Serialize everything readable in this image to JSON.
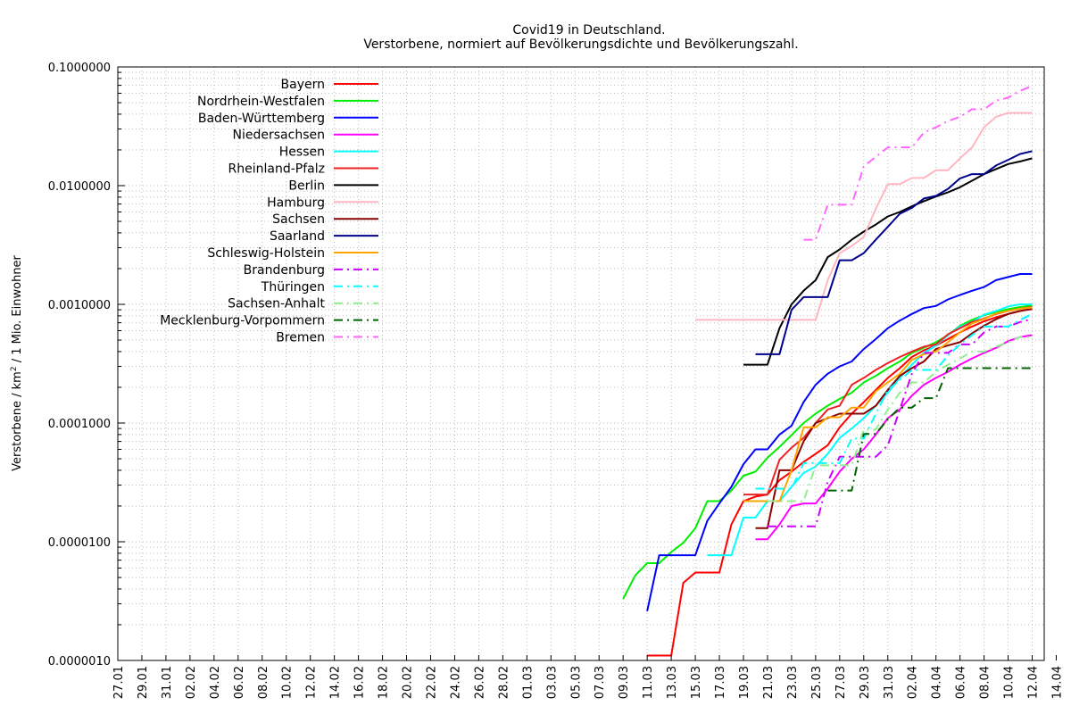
{
  "chart_data": {
    "type": "line",
    "title_line1": "Covid19 in Deutschland.",
    "title_line2": "Verstorbene, normiert auf Bevölkerungsdichte und Bevölkerungszahl.",
    "ylabel_main": "Verstorbene / km",
    "ylabel_sup": "2",
    "ylabel_rest": " / 1 Mio. Einwohner",
    "yscale": "log",
    "ylim": [
      1e-06,
      0.1
    ],
    "yticks": [
      {
        "v": 1e-06,
        "label": "0.0000010"
      },
      {
        "v": 1e-05,
        "label": "0.0000100"
      },
      {
        "v": 0.0001,
        "label": "0.0001000"
      },
      {
        "v": 0.001,
        "label": "0.0010000"
      },
      {
        "v": 0.01,
        "label": "0.0100000"
      },
      {
        "v": 0.1,
        "label": "0.1000000"
      }
    ],
    "xlim": [
      0,
      77
    ],
    "xticks": [
      "27.01",
      "29.01",
      "31.01",
      "02.02",
      "04.02",
      "06.02",
      "08.02",
      "10.02",
      "12.02",
      "14.02",
      "16.02",
      "18.02",
      "20.02",
      "22.02",
      "24.02",
      "26.02",
      "28.02",
      "01.03",
      "03.03",
      "05.03",
      "07.03",
      "09.03",
      "11.03",
      "13.03",
      "15.03",
      "17.03",
      "19.03",
      "21.03",
      "23.03",
      "25.03",
      "27.03",
      "29.03",
      "31.03",
      "02.04",
      "04.04",
      "06.04",
      "08.04",
      "10.04",
      "12.04",
      "14.04"
    ],
    "grid": true,
    "legend_position": "top-left",
    "series": [
      {
        "name": "Bayern",
        "color": "#ff0000",
        "dash": "solid",
        "x": [
          44,
          45,
          46,
          47,
          48,
          49,
          50,
          51,
          52,
          53,
          54,
          55,
          56,
          57,
          58,
          59,
          60,
          61,
          62,
          63,
          64,
          65,
          66,
          67,
          68,
          69,
          70,
          71,
          72,
          73,
          74,
          75,
          76
        ],
        "y": [
          1.1e-06,
          1.1e-06,
          1.1e-06,
          4.5e-06,
          5.5e-06,
          5.5e-06,
          5.5e-06,
          1.4e-05,
          2.2e-05,
          2.4e-05,
          2.5e-05,
          3.3e-05,
          3.9e-05,
          4.7e-05,
          5.5e-05,
          6.5e-05,
          9.2e-05,
          0.00012,
          0.00015,
          0.00019,
          0.00024,
          0.00029,
          0.00036,
          0.00041,
          0.00045,
          0.00051,
          0.00058,
          0.00065,
          0.00072,
          0.00078,
          0.00083,
          0.00088,
          0.00091
        ]
      },
      {
        "name": "Nordrhein-Westfalen",
        "color": "#00ee00",
        "dash": "solid",
        "x": [
          42,
          43,
          44,
          45,
          46,
          47,
          48,
          49,
          50,
          51,
          52,
          53,
          54,
          55,
          56,
          57,
          58,
          59,
          60,
          61,
          62,
          63,
          64,
          65,
          66,
          67,
          68,
          69,
          70,
          71,
          72,
          73,
          74,
          75,
          76
        ],
        "y": [
          3.3e-06,
          5.2e-06,
          6.6e-06,
          6.6e-06,
          8.2e-06,
          9.8e-06,
          1.3e-05,
          2.2e-05,
          2.2e-05,
          2.7e-05,
          3.6e-05,
          3.9e-05,
          5.1e-05,
          6.3e-05,
          7.9e-05,
          0.0001,
          0.00012,
          0.00014,
          0.00016,
          0.00018,
          0.00022,
          0.00025,
          0.00029,
          0.00033,
          0.00039,
          0.00043,
          0.00048,
          0.00055,
          0.00066,
          0.00074,
          0.00081,
          0.00086,
          0.00091,
          0.00095,
          0.00098
        ]
      },
      {
        "name": "Baden-Württemberg",
        "color": "#0000ff",
        "dash": "solid",
        "x": [
          44,
          45,
          46,
          47,
          48,
          49,
          50,
          51,
          52,
          53,
          54,
          55,
          56,
          57,
          58,
          59,
          60,
          61,
          62,
          63,
          64,
          65,
          66,
          67,
          68,
          69,
          70,
          71,
          72,
          73,
          74,
          75,
          76
        ],
        "y": [
          2.6e-06,
          7.7e-06,
          7.7e-06,
          7.7e-06,
          7.7e-06,
          1.5e-05,
          2.1e-05,
          2.9e-05,
          4.5e-05,
          6e-05,
          6e-05,
          8e-05,
          9.5e-05,
          0.00015,
          0.00021,
          0.00026,
          0.0003,
          0.00033,
          0.00042,
          0.00051,
          0.00063,
          0.00073,
          0.00083,
          0.00093,
          0.00097,
          0.0011,
          0.0012,
          0.0013,
          0.0014,
          0.0016,
          0.0017,
          0.0018,
          0.0018
        ]
      },
      {
        "name": "Niedersachsen",
        "color": "#ff00ff",
        "dash": "solid",
        "x": [
          53,
          54,
          55,
          56,
          57,
          58,
          59,
          60,
          61,
          62,
          63,
          64,
          65,
          66,
          67,
          68,
          69,
          70,
          71,
          72,
          73,
          74,
          75,
          76
        ],
        "y": [
          1.05e-05,
          1.05e-05,
          1.4e-05,
          2e-05,
          2.1e-05,
          2.1e-05,
          2.8e-05,
          3.9e-05,
          5e-05,
          6e-05,
          8e-05,
          0.00011,
          0.00013,
          0.00017,
          0.00021,
          0.00024,
          0.00027,
          0.00031,
          0.00035,
          0.00039,
          0.00043,
          0.00049,
          0.00053,
          0.00055
        ]
      },
      {
        "name": "Hessen",
        "color": "#00ffff",
        "dash": "solid",
        "x": [
          49,
          50,
          51,
          52,
          53,
          54,
          55,
          56,
          57,
          58,
          59,
          60,
          61,
          62,
          63,
          64,
          65,
          66,
          67,
          68,
          69,
          70,
          71,
          72,
          73,
          74,
          75,
          76
        ],
        "y": [
          7.7e-06,
          7.7e-06,
          7.7e-06,
          1.6e-05,
          1.6e-05,
          2.2e-05,
          2.2e-05,
          2.9e-05,
          3.8e-05,
          4.3e-05,
          5.5e-05,
          7.5e-05,
          9e-05,
          0.00011,
          0.00014,
          0.00018,
          0.00024,
          0.00031,
          0.00039,
          0.00045,
          0.00055,
          0.00065,
          0.00071,
          0.00082,
          0.00088,
          0.00096,
          0.001,
          0.001
        ]
      },
      {
        "name": "Rheinland-Pfalz",
        "color": "#ee2222",
        "dash": "solid",
        "x": [
          52,
          53,
          54,
          55,
          56,
          57,
          58,
          59,
          60,
          61,
          62,
          63,
          64,
          65,
          66,
          67,
          68,
          69,
          70,
          71,
          72,
          73,
          74,
          75,
          76
        ],
        "y": [
          2.5e-05,
          2.5e-05,
          2.5e-05,
          4.9e-05,
          6.2e-05,
          7.5e-05,
          0.0001,
          0.00013,
          0.00014,
          0.00021,
          0.00024,
          0.00028,
          0.00032,
          0.00036,
          0.0004,
          0.00044,
          0.00046,
          0.00056,
          0.00063,
          0.00071,
          0.00076,
          0.00083,
          0.00088,
          0.00092,
          0.00095
        ]
      },
      {
        "name": "Berlin",
        "color": "#000000",
        "dash": "solid",
        "x": [
          52,
          53,
          54,
          55,
          56,
          57,
          58,
          59,
          60,
          61,
          62,
          63,
          64,
          65,
          66,
          67,
          68,
          69,
          70,
          71,
          72,
          73,
          74,
          75,
          76
        ],
        "y": [
          0.00031,
          0.00031,
          0.00031,
          0.00063,
          0.001,
          0.0013,
          0.0016,
          0.0025,
          0.0029,
          0.0035,
          0.0041,
          0.0047,
          0.0055,
          0.006,
          0.0067,
          0.0074,
          0.0081,
          0.0088,
          0.0097,
          0.011,
          0.0125,
          0.0138,
          0.0152,
          0.016,
          0.017
        ]
      },
      {
        "name": "Hamburg",
        "color": "#ffb6c1",
        "dash": "solid",
        "x": [
          48,
          49,
          50,
          51,
          52,
          53,
          54,
          55,
          56,
          57,
          58,
          59,
          60,
          61,
          62,
          63,
          64,
          65,
          66,
          67,
          68,
          69,
          70,
          71,
          72,
          73,
          74,
          75,
          76
        ],
        "y": [
          0.00074,
          0.00074,
          0.00074,
          0.00074,
          0.00074,
          0.00074,
          0.00074,
          0.00074,
          0.00074,
          0.00074,
          0.00074,
          0.0016,
          0.0027,
          0.0031,
          0.0037,
          0.0064,
          0.0103,
          0.0103,
          0.0116,
          0.0116,
          0.0135,
          0.0135,
          0.017,
          0.021,
          0.031,
          0.038,
          0.041,
          0.041,
          0.041
        ]
      },
      {
        "name": "Sachsen",
        "color": "#8b0000",
        "dash": "solid",
        "x": [
          53,
          54,
          55,
          56,
          57,
          58,
          59,
          60,
          61,
          62,
          63,
          64,
          65,
          66,
          67,
          68,
          69,
          70,
          71,
          72,
          73,
          74,
          75,
          76
        ],
        "y": [
          1.3e-05,
          1.3e-05,
          4e-05,
          4e-05,
          7e-05,
          0.0001,
          0.00011,
          0.00012,
          0.00012,
          0.00012,
          0.00014,
          0.00019,
          0.00025,
          0.00029,
          0.00033,
          0.00042,
          0.00045,
          0.00048,
          0.00057,
          0.00066,
          0.00075,
          0.00083,
          0.00088,
          0.00092
        ]
      },
      {
        "name": "Saarland",
        "color": "#00008b",
        "dash": "solid",
        "x": [
          53,
          54,
          55,
          56,
          57,
          58,
          59,
          60,
          61,
          62,
          63,
          64,
          65,
          66,
          67,
          68,
          69,
          70,
          71,
          72,
          73,
          74,
          75,
          76
        ],
        "y": [
          0.00038,
          0.00038,
          0.00038,
          0.0009,
          0.00115,
          0.00115,
          0.00115,
          0.00235,
          0.00235,
          0.0027,
          0.0035,
          0.0045,
          0.0058,
          0.0065,
          0.0078,
          0.0082,
          0.0094,
          0.0115,
          0.0125,
          0.0125,
          0.0148,
          0.0165,
          0.0185,
          0.0195
        ]
      },
      {
        "name": "Schleswig-Holstein",
        "color": "#ffa500",
        "dash": "solid",
        "x": [
          52,
          53,
          54,
          55,
          56,
          57,
          58,
          59,
          60,
          61,
          62,
          63,
          64,
          65,
          66,
          67,
          68,
          69,
          70,
          71,
          72,
          73,
          74,
          75,
          76
        ],
        "y": [
          2.2e-05,
          2.2e-05,
          2.2e-05,
          2.2e-05,
          4e-05,
          9.2e-05,
          9.2e-05,
          0.000112,
          0.000112,
          0.000135,
          0.000135,
          0.000185,
          0.00022,
          0.00026,
          0.00034,
          0.00038,
          0.0004,
          0.00048,
          0.00058,
          0.00069,
          0.00075,
          0.00084,
          0.00088,
          0.00092,
          0.00094
        ]
      },
      {
        "name": "Brandenburg",
        "color": "#cc00ff",
        "dash": "dashdot",
        "x": [
          54,
          55,
          56,
          57,
          58,
          59,
          60,
          61,
          62,
          63,
          64,
          65,
          66,
          67,
          68,
          69,
          70,
          71,
          72,
          73,
          74,
          75,
          76
        ],
        "y": [
          1.35e-05,
          1.35e-05,
          1.35e-05,
          1.35e-05,
          1.35e-05,
          3.2e-05,
          5.2e-05,
          5.2e-05,
          5.2e-05,
          5.2e-05,
          6.5e-05,
          0.00013,
          0.00026,
          0.00039,
          0.00039,
          0.00039,
          0.00046,
          0.00046,
          0.00058,
          0.00065,
          0.00065,
          0.00071,
          0.00075
        ]
      },
      {
        "name": "Thüringen",
        "color": "#00ffff",
        "dash": "dashdot",
        "x": [
          53,
          54,
          55,
          56,
          57,
          58,
          59,
          60,
          61,
          62,
          63,
          64,
          65,
          66,
          67,
          68,
          69,
          70,
          71,
          72,
          73,
          74,
          75,
          76
        ],
        "y": [
          2.8e-05,
          2.8e-05,
          2.8e-05,
          2.8e-05,
          4.6e-05,
          4.6e-05,
          4.6e-05,
          4.6e-05,
          7.4e-05,
          7.4e-05,
          0.00012,
          0.00019,
          0.00023,
          0.00028,
          0.00028,
          0.00028,
          0.00037,
          0.00046,
          0.00055,
          0.00065,
          0.00065,
          0.00065,
          0.00074,
          0.00083
        ]
      },
      {
        "name": "Sachsen-Anhalt",
        "color": "#90ee90",
        "dash": "dashdot",
        "x": [
          54,
          55,
          56,
          57,
          58,
          59,
          60,
          61,
          62,
          63,
          64,
          65,
          66,
          67,
          68,
          69,
          70,
          71,
          72,
          73,
          74,
          75,
          76
        ],
        "y": [
          2.2e-05,
          2.2e-05,
          2.2e-05,
          2.2e-05,
          4.4e-05,
          4.4e-05,
          4.4e-05,
          4.4e-05,
          8.8e-05,
          8.8e-05,
          0.00013,
          0.00018,
          0.00022,
          0.00022,
          0.00027,
          0.00031,
          0.00035,
          0.0004,
          0.0004,
          0.00044,
          0.00048,
          0.00053,
          0.00053
        ]
      },
      {
        "name": "Mecklenburg-Vorpommern",
        "color": "#006400",
        "dash": "dashdot",
        "x": [
          59,
          60,
          61,
          62,
          63,
          64,
          65,
          66,
          67,
          68,
          69,
          70,
          71,
          72,
          73,
          74,
          75,
          76
        ],
        "y": [
          2.7e-05,
          2.7e-05,
          2.7e-05,
          8.1e-05,
          8.1e-05,
          0.000108,
          0.000135,
          0.000135,
          0.000162,
          0.000162,
          0.00029,
          0.00029,
          0.00029,
          0.00029,
          0.00029,
          0.00029,
          0.00029,
          0.00029
        ]
      },
      {
        "name": "Bremen",
        "color": "#ff66ff",
        "dash": "dashdot",
        "x": [
          57,
          58,
          59,
          60,
          61,
          62,
          63,
          64,
          65,
          66,
          67,
          68,
          69,
          70,
          71,
          72,
          73,
          74,
          75,
          76
        ],
        "y": [
          0.0035,
          0.0035,
          0.0069,
          0.0069,
          0.0069,
          0.0145,
          0.0175,
          0.021,
          0.021,
          0.021,
          0.028,
          0.031,
          0.035,
          0.038,
          0.044,
          0.044,
          0.052,
          0.055,
          0.063,
          0.069
        ]
      }
    ]
  }
}
